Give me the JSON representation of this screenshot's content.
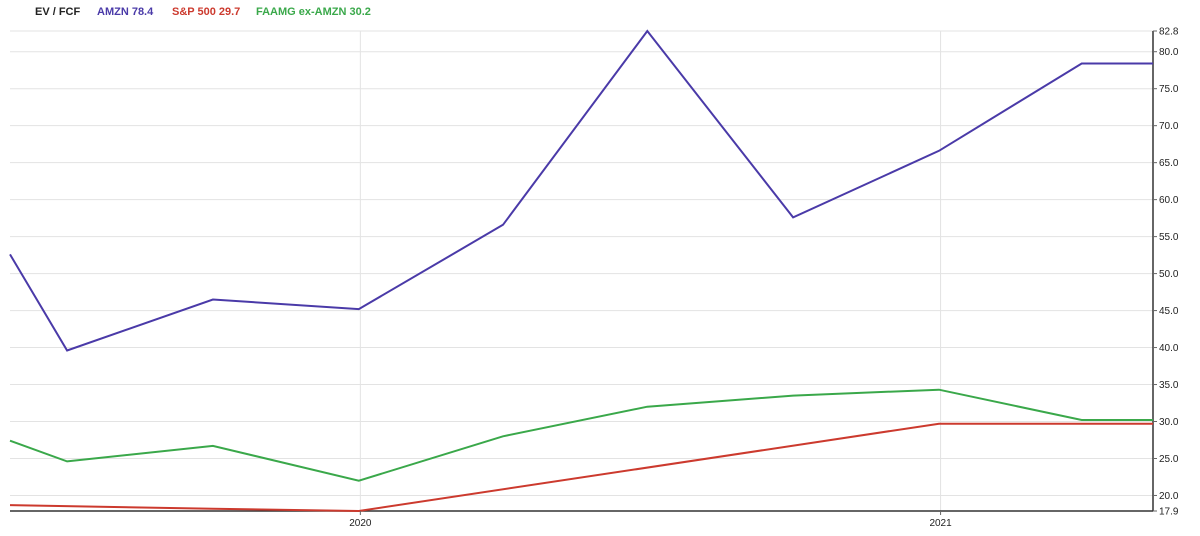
{
  "chart_data": {
    "type": "line",
    "title": "",
    "legend": {
      "placement": "top-left",
      "label": "EV / FCF",
      "entries": [
        {
          "series": "AMZN",
          "value": "78.4",
          "text": "AMZN 78.4",
          "color": "#4a3aa8"
        },
        {
          "series": "S&P 500",
          "value": "29.7",
          "text": "S&P 500 29.7",
          "color": "#cc3a2e"
        },
        {
          "series": "FAAMG ex-AMZN",
          "value": "30.2",
          "text": "FAAMG ex-AMZN 30.2",
          "color": "#3aa84a"
        }
      ]
    },
    "x_tick_labels": [
      {
        "label": "2020",
        "date": "2020-01-01"
      },
      {
        "label": "2021",
        "date": "2021-01-01"
      }
    ],
    "xlim": [
      "2019-05-25",
      "2021-05-15"
    ],
    "ylim": [
      17.9,
      82.8
    ],
    "y_ticks": [
      "17.9",
      "20.0",
      "25.0",
      "30.0",
      "35.0",
      "40.0",
      "45.0",
      "50.0",
      "55.0",
      "60.0",
      "65.0",
      "70.0",
      "75.0",
      "80.0",
      "82.8"
    ],
    "y_axis_side": "right",
    "grid": true,
    "series": [
      {
        "name": "AMZN",
        "color": "#4a3aa8",
        "points": [
          {
            "x": "2019-05-25",
            "y": 52.6
          },
          {
            "x": "2019-06-30",
            "y": 39.6
          },
          {
            "x": "2019-09-30",
            "y": 46.5
          },
          {
            "x": "2019-12-31",
            "y": 45.2
          },
          {
            "x": "2020-03-31",
            "y": 56.6
          },
          {
            "x": "2020-06-30",
            "y": 82.8
          },
          {
            "x": "2020-09-30",
            "y": 57.6
          },
          {
            "x": "2020-12-31",
            "y": 66.6
          },
          {
            "x": "2021-03-31",
            "y": 78.4
          },
          {
            "x": "2021-05-15",
            "y": 78.4
          }
        ]
      },
      {
        "name": "S&P 500",
        "color": "#cc3a2e",
        "points": [
          {
            "x": "2019-05-25",
            "y": 18.7
          },
          {
            "x": "2019-09-30",
            "y": 18.2
          },
          {
            "x": "2019-12-31",
            "y": 17.9
          },
          {
            "x": "2020-12-31",
            "y": 29.7
          },
          {
            "x": "2021-05-15",
            "y": 29.7
          }
        ]
      },
      {
        "name": "FAAMG ex-AMZN",
        "color": "#3aa84a",
        "points": [
          {
            "x": "2019-05-25",
            "y": 27.4
          },
          {
            "x": "2019-06-30",
            "y": 24.6
          },
          {
            "x": "2019-09-30",
            "y": 26.7
          },
          {
            "x": "2019-12-31",
            "y": 22.0
          },
          {
            "x": "2020-03-31",
            "y": 28.0
          },
          {
            "x": "2020-06-30",
            "y": 32.0
          },
          {
            "x": "2020-09-30",
            "y": 33.5
          },
          {
            "x": "2020-12-31",
            "y": 34.3
          },
          {
            "x": "2021-03-31",
            "y": 30.2
          },
          {
            "x": "2021-05-15",
            "y": 30.2
          }
        ]
      }
    ]
  }
}
